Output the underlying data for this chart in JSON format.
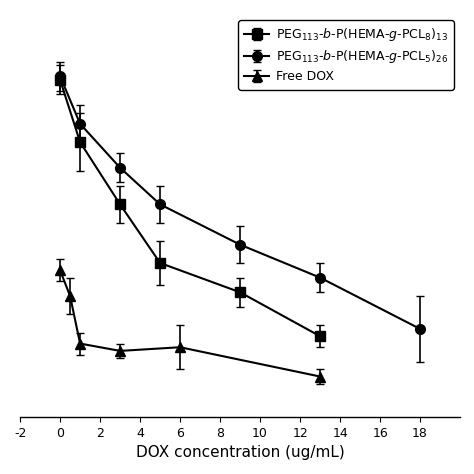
{
  "series1_label": "PEG$_{113}$-$b$-P(HEMA-$g$-PCL$_{8}$)$_{13}$",
  "series2_label": "PEG$_{113}$-$b$-P(HEMA-$g$-PCL$_{5}$)$_{26}$",
  "series3_label": "Free DOX",
  "series1_x": [
    0,
    1,
    3,
    5,
    9,
    13
  ],
  "series1_y": [
    92,
    75,
    58,
    42,
    34,
    22
  ],
  "series1_yerr": [
    4,
    8,
    5,
    6,
    4,
    3
  ],
  "series2_x": [
    0,
    1,
    3,
    5,
    9,
    13,
    18
  ],
  "series2_y": [
    93,
    80,
    68,
    58,
    47,
    38,
    24
  ],
  "series2_yerr": [
    4,
    5,
    4,
    5,
    5,
    4,
    9
  ],
  "series3_x": [
    0,
    0.5,
    1,
    3,
    6,
    13
  ],
  "series3_y": [
    40,
    33,
    20,
    18,
    19,
    11
  ],
  "series3_yerr": [
    3,
    5,
    3,
    2,
    6,
    2
  ],
  "xlim": [
    -2,
    20
  ],
  "ylim": [
    0,
    110
  ],
  "xlabel": "DOX concentration (ug/mL)",
  "xtick_positions": [
    -2,
    0,
    2,
    4,
    6,
    8,
    10,
    12,
    14,
    16,
    18
  ],
  "xtick_labels": [
    "-2",
    "0",
    "2",
    "4",
    "6",
    "8",
    "10",
    "12",
    "14",
    "16",
    "18"
  ],
  "line_color": "#000000",
  "marker_size": 7,
  "linewidth": 1.5,
  "capsize": 3,
  "legend_fontsize": 9,
  "xlabel_fontsize": 11,
  "tick_fontsize": 9
}
